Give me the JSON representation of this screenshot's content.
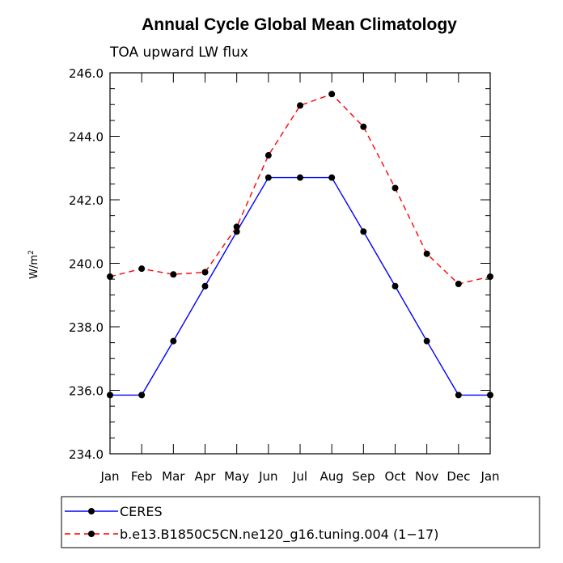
{
  "chart_data": {
    "type": "line",
    "title": "Annual Cycle Global Mean Climatology",
    "subtitle": "TOA upward LW flux",
    "xlabel": "",
    "ylabel": "W/m",
    "ylabel_superscript": "2",
    "categories": [
      "Jan",
      "Feb",
      "Mar",
      "Apr",
      "May",
      "Jun",
      "Jul",
      "Aug",
      "Sep",
      "Oct",
      "Nov",
      "Dec",
      "Jan"
    ],
    "ylim": [
      234.0,
      246.0
    ],
    "yticks": [
      "234.0",
      "236.0",
      "238.0",
      "240.0",
      "242.0",
      "244.0",
      "246.0"
    ],
    "series": [
      {
        "name": "CERES",
        "color": "#0000ff",
        "dash": "solid",
        "values": [
          235.85,
          235.85,
          237.55,
          239.28,
          241.0,
          242.7,
          242.7,
          242.7,
          241.0,
          239.28,
          237.55,
          235.85,
          235.85
        ]
      },
      {
        "name": "b.e13.B1850C5CN.ne120_g16.tuning.004 (1−17)",
        "color": "#ff0000",
        "dash": "dashed",
        "values": [
          239.58,
          239.83,
          239.65,
          239.72,
          241.15,
          243.4,
          244.97,
          245.33,
          244.3,
          242.37,
          240.3,
          239.35,
          239.58
        ]
      }
    ],
    "legend_position": "bottom"
  }
}
